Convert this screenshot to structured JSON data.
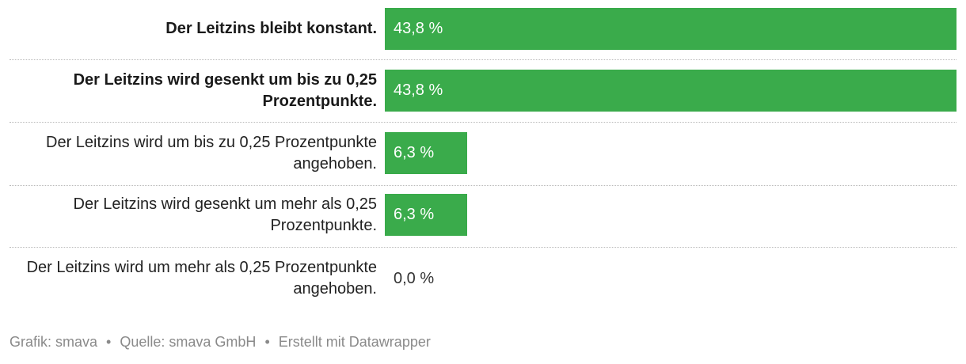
{
  "chart_data": {
    "type": "bar",
    "orientation": "horizontal",
    "unit": "%",
    "xlim": [
      0,
      43.8
    ],
    "bar_color": "#3aab4b",
    "categories": [
      "Der Leitzins bleibt konstant.",
      "Der Leitzins wird gesenkt um bis zu 0,25 Prozentpunkte.",
      "Der Leitzins wird um bis zu 0,25 Prozentpunkte angehoben.",
      "Der Leitzins wird gesenkt um mehr als 0,25 Prozentpunkte.",
      "Der Leitzins wird um mehr als 0,25 Prozentpunkte angehoben."
    ],
    "values": [
      43.8,
      43.8,
      6.3,
      6.3,
      0.0
    ],
    "value_labels": [
      "43,8 %",
      "43,8 %",
      "6,3 %",
      "6,3 %",
      "0,0 %"
    ],
    "highlighted": [
      true,
      true,
      false,
      false,
      false
    ]
  },
  "footer": {
    "credit": "Grafik: smava",
    "source": "Quelle: smava GmbH",
    "tool": "Erstellt mit Datawrapper",
    "separator": "•"
  }
}
